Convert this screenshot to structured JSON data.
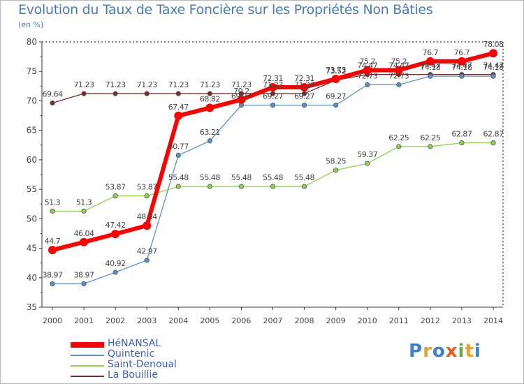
{
  "chart_data": {
    "type": "line",
    "title": "Evolution du Taux de Taxe Foncière sur les Propriétés Non Bâties",
    "ylabel": "(en %)",
    "xlabel": "",
    "ylim": [
      35,
      80
    ],
    "yticks": [
      "35",
      "40",
      "45",
      "50",
      "55",
      "60",
      "65",
      "70",
      "75",
      "80"
    ],
    "categories": [
      "2000",
      "2001",
      "2002",
      "2003",
      "2004",
      "2005",
      "2006",
      "2007",
      "2008",
      "2009",
      "2010",
      "2011",
      "2012",
      "2013",
      "2014"
    ],
    "series": [
      {
        "name": "La Bouillie",
        "color": "#7a2c2c",
        "values": [
          69.64,
          71.23,
          71.23,
          71.23,
          71.23,
          71.23,
          71.23,
          71.23,
          71.23,
          73.52,
          74.47,
          74.47,
          74.47,
          74.47,
          74.47
        ],
        "labels": [
          "69.64",
          "71.23",
          "71.23",
          "71.23",
          "71.23",
          "71.23",
          "71.23",
          "71.23",
          "71.23",
          "73.52",
          "74.47",
          "74.47",
          "74.47",
          "74.47",
          "74.47"
        ]
      },
      {
        "name": "Saint-Denoual",
        "color": "#8fd14f",
        "values": [
          51.3,
          51.3,
          53.87,
          53.87,
          55.48,
          55.48,
          55.48,
          55.48,
          55.48,
          58.25,
          59.37,
          62.25,
          62.25,
          62.87,
          62.87
        ],
        "labels": [
          "51.3",
          "51.3",
          "53.87",
          "53.87",
          "55.48",
          "55.48",
          "55.48",
          "55.48",
          "55.48",
          "58.25",
          "59.37",
          "62.25",
          "62.25",
          "62.87",
          "62.87"
        ]
      },
      {
        "name": "Quintenic",
        "color": "#5b8fc7",
        "values": [
          38.97,
          38.97,
          40.92,
          42.97,
          60.77,
          63.21,
          69.27,
          69.27,
          69.27,
          69.27,
          72.73,
          72.73,
          74.18,
          74.18,
          74.18
        ],
        "labels": [
          "38.97",
          "38.97",
          "40.92",
          "42.97",
          "60.77",
          "63.21",
          "69.27",
          "69.27",
          "69.27",
          "69.27",
          "72.73",
          "72.73",
          "74.18",
          "74.18",
          "74.18"
        ]
      },
      {
        "name": "HéNANSAL",
        "color": "#ff0000",
        "values": [
          44.7,
          46.04,
          47.42,
          48.84,
          67.47,
          68.82,
          70.2,
          72.31,
          72.31,
          73.73,
          75.2,
          75.2,
          76.7,
          76.7,
          78.08
        ],
        "labels": [
          "44.7",
          "46.04",
          "47.42",
          "48.84",
          "67.47",
          "68.82",
          "70.2",
          "72.31",
          "72.31",
          "73.73",
          "75.2",
          "75.2",
          "76.7",
          "76.7",
          "78.08"
        ]
      }
    ],
    "legend": [
      "HéNANSAL",
      "Quintenic",
      "Saint-Denoual",
      "La Bouillie"
    ],
    "grid": false
  },
  "logo": {
    "text": "Proxiti"
  }
}
